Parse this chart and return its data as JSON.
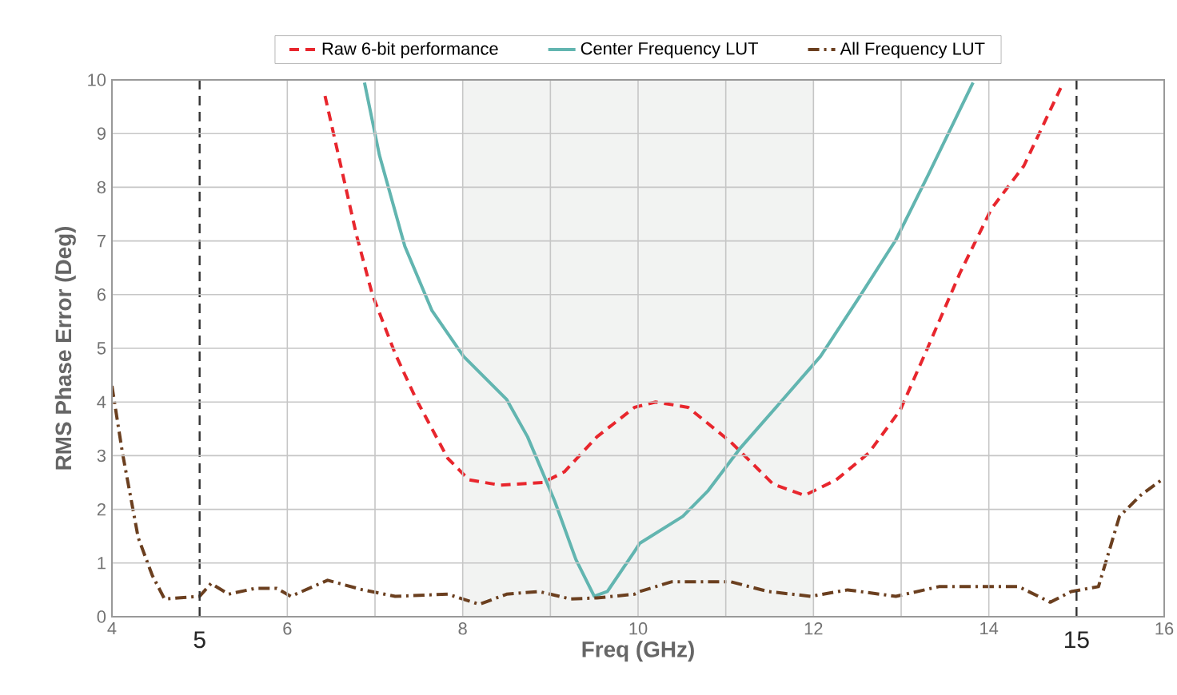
{
  "chart_data": {
    "type": "line",
    "xlabel": "Freq (GHz)",
    "ylabel": "RMS Phase Error (Deg)",
    "xlim": [
      4,
      16
    ],
    "ylim": [
      0,
      10
    ],
    "xticks": [
      4,
      6,
      {
        "value": 7,
        "label": null
      },
      8,
      {
        "value": 9,
        "label": null
      },
      10,
      {
        "value": 11,
        "label": null
      },
      12,
      {
        "value": 13,
        "label": null
      },
      14,
      16
    ],
    "yticks": [
      0,
      1,
      2,
      3,
      4,
      5,
      6,
      7,
      8,
      9,
      10
    ],
    "grid": true,
    "legend": "top",
    "bands": [
      {
        "axis": "x",
        "from": 8,
        "to": 12,
        "color": "#f2f3f2"
      }
    ],
    "ref_lines": [
      {
        "axis": "x",
        "value": 5,
        "label": "5",
        "color": "#333333",
        "line_style": "dashed"
      },
      {
        "axis": "x",
        "value": 15,
        "label": "15",
        "color": "#333333",
        "line_style": "dashed"
      }
    ],
    "series": [
      {
        "name": "Raw 6-bit performance",
        "color": "#e8262d",
        "line_style": "dashed",
        "x": [
          6.43,
          6.79,
          6.97,
          7.23,
          7.47,
          7.83,
          8.07,
          8.43,
          8.92,
          9.16,
          9.53,
          9.96,
          10.2,
          10.57,
          11.06,
          11.54,
          11.9,
          12.26,
          12.63,
          12.99,
          13.3,
          13.67,
          14.03,
          14.4,
          14.82
        ],
        "values": [
          9.7,
          7.1,
          6.0,
          4.9,
          4.05,
          2.95,
          2.55,
          2.45,
          2.5,
          2.7,
          3.35,
          3.9,
          4.0,
          3.9,
          3.25,
          2.47,
          2.26,
          2.55,
          3.05,
          3.85,
          5.0,
          6.4,
          7.6,
          8.4,
          9.85
        ]
      },
      {
        "name": "Center Frequency LUT",
        "color": "#62b5b0",
        "line_style": "solid",
        "x": [
          6.88,
          7.05,
          7.34,
          7.65,
          8.01,
          8.5,
          8.74,
          9.05,
          9.29,
          9.5,
          9.65,
          9.96,
          10.02,
          10.51,
          10.8,
          11.17,
          11.6,
          12.08,
          12.51,
          12.94,
          13.3,
          13.82
        ],
        "values": [
          9.95,
          8.6,
          6.9,
          5.7,
          4.85,
          4.05,
          3.35,
          2.15,
          1.07,
          0.38,
          0.47,
          1.22,
          1.37,
          1.87,
          2.35,
          3.15,
          3.95,
          4.85,
          5.92,
          7.02,
          8.2,
          9.95
        ]
      },
      {
        "name": "All Frequency LUT",
        "color": "#6b3f1f",
        "line_style": "dashdot",
        "x": [
          4.0,
          4.12,
          4.3,
          4.46,
          4.6,
          5.0,
          5.13,
          5.33,
          5.64,
          5.88,
          6.04,
          6.25,
          6.46,
          6.86,
          7.23,
          7.83,
          8.19,
          8.5,
          8.87,
          9.23,
          9.53,
          9.96,
          10.02,
          10.38,
          11.06,
          11.48,
          11.97,
          12.39,
          12.94,
          13.43,
          13.9,
          14.34,
          14.7,
          14.94,
          15.25,
          15.49,
          15.73,
          15.98
        ],
        "values": [
          4.3,
          3.05,
          1.47,
          0.77,
          0.33,
          0.38,
          0.62,
          0.42,
          0.53,
          0.53,
          0.38,
          0.53,
          0.68,
          0.5,
          0.38,
          0.42,
          0.23,
          0.42,
          0.47,
          0.33,
          0.35,
          0.42,
          0.47,
          0.65,
          0.65,
          0.47,
          0.38,
          0.5,
          0.38,
          0.56,
          0.56,
          0.56,
          0.27,
          0.47,
          0.56,
          1.87,
          2.26,
          2.56
        ]
      }
    ]
  }
}
